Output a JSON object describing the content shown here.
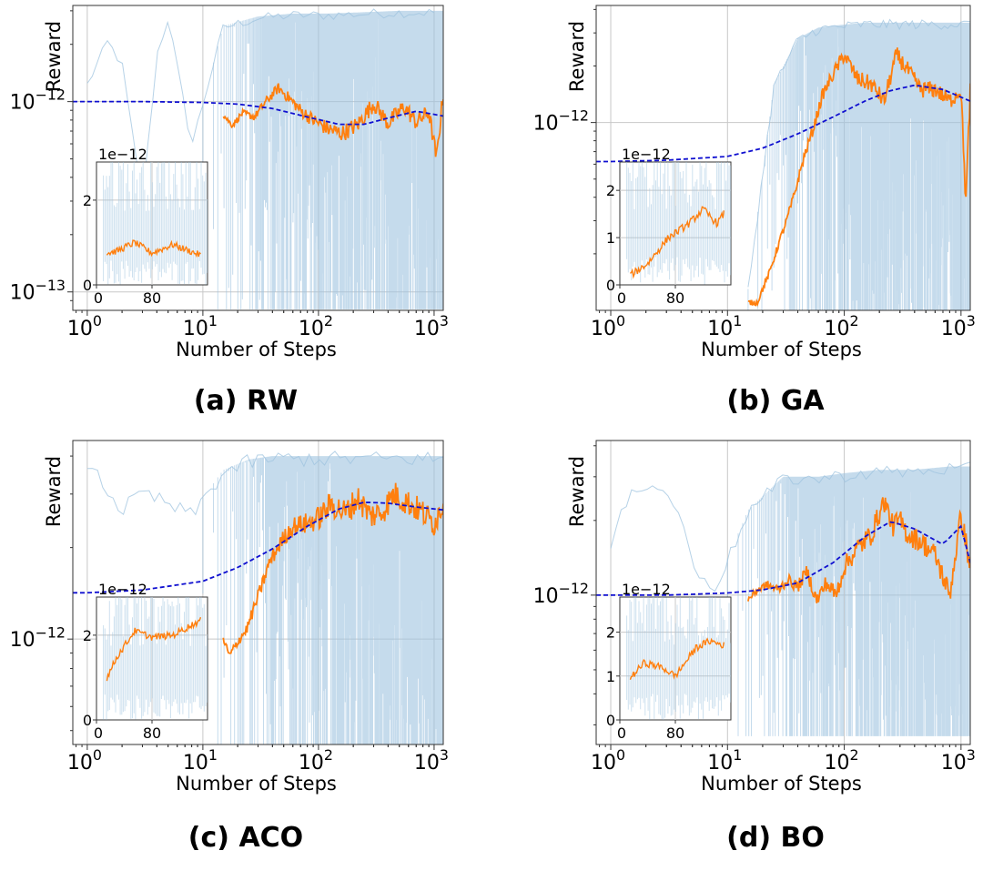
{
  "figure": {
    "panels": [
      {
        "caption": "(a) RW",
        "ylabel": "Reward",
        "xlabel": "Number of Steps",
        "x_ticks": [
          {
            "value": 1,
            "base": "10",
            "exp": "0"
          },
          {
            "value": 10,
            "base": "10",
            "exp": "1"
          },
          {
            "value": 100,
            "base": "10",
            "exp": "2"
          },
          {
            "value": 1000,
            "base": "10",
            "exp": "3"
          }
        ],
        "y_ticks": [
          {
            "value": 1e-12,
            "base": "10",
            "exp": "−12"
          },
          {
            "value": 1e-13,
            "base": "10",
            "exp": "−13"
          }
        ],
        "inset": {
          "offset_label": "1e−12",
          "y_ticks": [
            {
              "value": 0,
              "label": "0"
            },
            {
              "value": 2,
              "label": "2"
            }
          ],
          "x_ticks": [
            {
              "value": 0,
              "label": "0"
            },
            {
              "value": 80,
              "label": "80"
            }
          ]
        }
      },
      {
        "caption": "(b) GA",
        "ylabel": "Reward",
        "xlabel": "Number of Steps",
        "x_ticks": [
          {
            "value": 1,
            "base": "10",
            "exp": "0"
          },
          {
            "value": 10,
            "base": "10",
            "exp": "1"
          },
          {
            "value": 100,
            "base": "10",
            "exp": "2"
          },
          {
            "value": 1000,
            "base": "10",
            "exp": "3"
          }
        ],
        "y_ticks": [
          {
            "value": 1e-12,
            "base": "10",
            "exp": "−12"
          }
        ],
        "inset": {
          "offset_label": "1e−12",
          "y_ticks": [
            {
              "value": 0,
              "label": "0"
            },
            {
              "value": 1,
              "label": "1"
            },
            {
              "value": 2,
              "label": "2"
            }
          ],
          "x_ticks": [
            {
              "value": 0,
              "label": "0"
            },
            {
              "value": 80,
              "label": "80"
            }
          ]
        }
      },
      {
        "caption": "(c) ACO",
        "ylabel": "Reward",
        "xlabel": "Number of Steps",
        "x_ticks": [
          {
            "value": 1,
            "base": "10",
            "exp": "0"
          },
          {
            "value": 10,
            "base": "10",
            "exp": "1"
          },
          {
            "value": 100,
            "base": "10",
            "exp": "2"
          },
          {
            "value": 1000,
            "base": "10",
            "exp": "3"
          }
        ],
        "y_ticks": [
          {
            "value": 1e-12,
            "base": "10",
            "exp": "−12"
          }
        ],
        "inset": {
          "offset_label": "1e−12",
          "y_ticks": [
            {
              "value": 0,
              "label": "0"
            },
            {
              "value": 2,
              "label": "2"
            }
          ],
          "x_ticks": [
            {
              "value": 0,
              "label": "0"
            },
            {
              "value": 80,
              "label": "80"
            }
          ]
        }
      },
      {
        "caption": "(d) BO",
        "ylabel": "Reward",
        "xlabel": "Number of Steps",
        "x_ticks": [
          {
            "value": 1,
            "base": "10",
            "exp": "0"
          },
          {
            "value": 10,
            "base": "10",
            "exp": "1"
          },
          {
            "value": 100,
            "base": "10",
            "exp": "2"
          },
          {
            "value": 1000,
            "base": "10",
            "exp": "3"
          }
        ],
        "y_ticks": [
          {
            "value": 1e-12,
            "base": "10",
            "exp": "−12"
          }
        ],
        "inset": {
          "offset_label": "1e−12",
          "y_ticks": [
            {
              "value": 0,
              "label": "0"
            },
            {
              "value": 1,
              "label": "1"
            },
            {
              "value": 2,
              "label": "2"
            }
          ],
          "x_ticks": [
            {
              "value": 0,
              "label": "0"
            },
            {
              "value": 80,
              "label": "80"
            }
          ]
        }
      }
    ]
  },
  "colors": {
    "raw": "#9ec3df",
    "smoothed": "#ff7f0e",
    "trend": "#1010d0",
    "grid": "#c8c8c8",
    "axis": "#333333",
    "text": "#000000"
  },
  "chart_data": [
    {
      "type": "line",
      "title": "(a) RW",
      "xlabel": "Number of Steps",
      "ylabel": "Reward",
      "xscale": "log",
      "yscale": "log",
      "xlim": [
        0.75,
        1200
      ],
      "ylim": [
        8e-14,
        3.2e-12
      ],
      "series": [
        {
          "name": "raw reward",
          "style": "light blue thin",
          "x": [
            1,
            1.5,
            2,
            3,
            4,
            5,
            8,
            15,
            30,
            60,
            120,
            250,
            500,
            1000
          ],
          "y": [
            1.25e-12,
            2.1e-12,
            1.6e-12,
            3e-13,
            1.8e-12,
            2.8e-12,
            6e-13,
            2.5e-12,
            2.8e-12,
            2.9e-12,
            2.9e-12,
            2.95e-12,
            3e-12,
            3e-12
          ],
          "band_floor": 9e-14
        },
        {
          "name": "smoothed",
          "style": "orange",
          "x": [
            15,
            18,
            22,
            28,
            35,
            45,
            55,
            70,
            90,
            120,
            160,
            220,
            300,
            400,
            550,
            700,
            900,
            1050,
            1200
          ],
          "y": [
            8.5e-13,
            7.5e-13,
            8.7e-13,
            8.3e-13,
            1e-12,
            1.18e-12,
            1.05e-12,
            9e-13,
            8e-13,
            7.2e-13,
            6.8e-13,
            7.6e-13,
            9.8e-13,
            7.7e-13,
            9.4e-13,
            7.8e-13,
            8.8e-13,
            5e-13,
            1.12e-12
          ]
        },
        {
          "name": "trend",
          "style": "blue dashed",
          "x": [
            0.75,
            1,
            3,
            10,
            20,
            40,
            80,
            150,
            250,
            400,
            700,
            1200
          ],
          "y": [
            1e-12,
            1e-12,
            1e-12,
            9.9e-13,
            9.7e-13,
            9.2e-13,
            8.3e-13,
            7.6e-13,
            7.6e-13,
            8.2e-13,
            8.9e-13,
            8.4e-13
          ]
        }
      ]
    },
    {
      "type": "line",
      "title": "(b) GA",
      "xlabel": "Number of Steps",
      "ylabel": "Reward",
      "xscale": "log",
      "yscale": "log",
      "xlim": [
        0.75,
        1200
      ],
      "ylim": [
        1e-13,
        4.2e-12
      ],
      "series": [
        {
          "name": "raw reward",
          "style": "light blue thin",
          "x": [
            15,
            25,
            40,
            60,
            90,
            150,
            300,
            600,
            1200
          ],
          "y": [
            1.3e-13,
            1.6e-12,
            2.8e-12,
            3.2e-12,
            3.3e-12,
            3.4e-12,
            3.4e-12,
            3.4e-12,
            3.4e-12
          ],
          "band_floor": 1e-13
        },
        {
          "name": "smoothed",
          "style": "orange",
          "x": [
            15,
            18,
            20,
            23,
            27,
            32,
            38,
            45,
            55,
            65,
            80,
            100,
            130,
            170,
            220,
            280,
            350,
            450,
            600,
            800,
            1000,
            1100,
            1200
          ],
          "y": [
            1.1e-13,
            1.1e-13,
            1.3e-13,
            1.6e-13,
            2.2e-13,
            3e-13,
            4.3e-13,
            6.5e-13,
            9.5e-13,
            1.4e-12,
            1.8e-12,
            2.3e-12,
            1.7e-12,
            1.6e-12,
            1.3e-12,
            2.3e-12,
            1.9e-12,
            1.5e-12,
            1.5e-12,
            1.3e-12,
            1.5e-12,
            3.7e-13,
            1.5e-12
          ]
        },
        {
          "name": "trend",
          "style": "blue dashed",
          "x": [
            0.75,
            1,
            3,
            10,
            20,
            40,
            80,
            150,
            250,
            400,
            700,
            1200
          ],
          "y": [
            6.2e-13,
            6.2e-13,
            6.3e-13,
            6.6e-13,
            7.3e-13,
            8.7e-13,
            1.07e-12,
            1.3e-12,
            1.48e-12,
            1.58e-12,
            1.5e-12,
            1.3e-12
          ]
        }
      ]
    },
    {
      "type": "line",
      "title": "(c) ACO",
      "xlabel": "Number of Steps",
      "ylabel": "Reward",
      "xscale": "log",
      "yscale": "log",
      "xlim": [
        0.75,
        1200
      ],
      "ylim": [
        4.5e-13,
        4.5e-12
      ],
      "series": [
        {
          "name": "raw reward",
          "style": "light blue thin",
          "x": [
            1,
            2,
            3,
            8,
            15,
            25,
            40,
            60,
            100,
            200,
            400,
            800,
            1200
          ],
          "y": [
            3.9e-12,
            2.7e-12,
            3.1e-12,
            2.6e-12,
            3.6e-12,
            3.9e-12,
            4e-12,
            4e-12,
            4e-12,
            4e-12,
            4e-12,
            4e-12,
            4e-12
          ],
          "band_floor": 5e-13
        },
        {
          "name": "smoothed",
          "style": "orange",
          "x": [
            15,
            17,
            20,
            24,
            30,
            38,
            48,
            60,
            80,
            100,
            130,
            170,
            220,
            280,
            350,
            450,
            600,
            800,
            1000,
            1200
          ],
          "y": [
            1e-12,
            8.8e-13,
            9.8e-13,
            1.08e-12,
            1.38e-12,
            1.8e-12,
            2.1e-12,
            2.35e-12,
            2.4e-12,
            2.5e-12,
            2.78e-12,
            2.6e-12,
            2.9e-12,
            2.55e-12,
            2.6e-12,
            3e-12,
            2.8e-12,
            2.6e-12,
            2.4e-12,
            2.8e-12
          ]
        },
        {
          "name": "trend",
          "style": "blue dashed",
          "x": [
            0.75,
            1,
            3,
            10,
            20,
            40,
            80,
            150,
            250,
            400,
            700,
            1200
          ],
          "y": [
            1.42e-12,
            1.42e-12,
            1.45e-12,
            1.55e-12,
            1.72e-12,
            1.98e-12,
            2.35e-12,
            2.68e-12,
            2.82e-12,
            2.8e-12,
            2.72e-12,
            2.66e-12
          ]
        }
      ]
    },
    {
      "type": "line",
      "title": "(d) BO",
      "xlabel": "Number of Steps",
      "ylabel": "Reward",
      "xscale": "log",
      "yscale": "log",
      "xlim": [
        0.75,
        1200
      ],
      "ylim": [
        2.5e-13,
        4.2e-12
      ],
      "series": [
        {
          "name": "raw reward",
          "style": "light blue thin",
          "x": [
            1,
            1.5,
            2.5,
            4,
            5,
            8,
            15,
            30,
            60,
            100,
            200,
            400,
            800,
            1200
          ],
          "y": [
            1.6e-12,
            2.8e-12,
            2.8e-12,
            2.2e-12,
            1.3e-12,
            1.1e-12,
            2.2e-12,
            3e-12,
            3e-12,
            3.1e-12,
            3.2e-12,
            3.2e-12,
            3.3e-12,
            3.3e-12
          ],
          "band_floor": 3e-13
        },
        {
          "name": "smoothed",
          "style": "orange",
          "x": [
            15,
            18,
            22,
            27,
            33,
            40,
            48,
            58,
            70,
            85,
            100,
            130,
            170,
            220,
            260,
            300,
            350,
            450,
            600,
            800,
            1000,
            1200
          ],
          "y": [
            9.6e-13,
            1.05e-12,
            1.1e-12,
            1.05e-12,
            1.15e-12,
            1.08e-12,
            1.25e-12,
            9.5e-13,
            1.12e-12,
            1e-12,
            1.3e-12,
            1.55e-12,
            1.75e-12,
            2.4e-12,
            1.9e-12,
            2e-12,
            1.75e-12,
            1.65e-12,
            1.45e-12,
            1e-12,
            2.1e-12,
            1.3e-12
          ]
        },
        {
          "name": "trend",
          "style": "blue dashed",
          "x": [
            0.75,
            1,
            3,
            10,
            20,
            40,
            80,
            150,
            250,
            400,
            700,
            1000,
            1200
          ],
          "y": [
            1e-12,
            1e-12,
            1e-12,
            1.02e-12,
            1.05e-12,
            1.12e-12,
            1.35e-12,
            1.72e-12,
            1.98e-12,
            1.85e-12,
            1.6e-12,
            1.9e-12,
            1.35e-12
          ]
        }
      ]
    }
  ]
}
